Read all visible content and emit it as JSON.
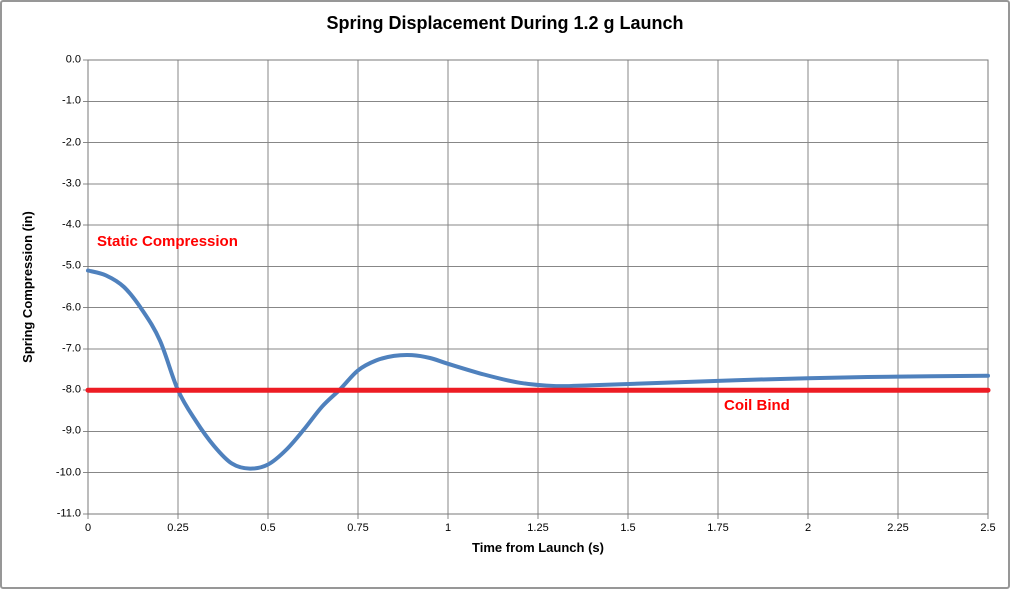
{
  "chart_data": {
    "type": "line",
    "title": "Spring Displacement During 1.2 g Launch",
    "xlabel": "Time from Launch (s)",
    "ylabel": "Spring Compression (in)",
    "xlim": [
      0,
      2.5
    ],
    "ylim": [
      -11.0,
      0.0
    ],
    "grid": true,
    "legend": "none",
    "x_tick_labels": [
      "0",
      "0.25",
      "0.5",
      "0.75",
      "1",
      "1.25",
      "1.5",
      "1.75",
      "2",
      "2.25",
      "2.5"
    ],
    "y_tick_labels": [
      "0.0",
      "-1.0",
      "-2.0",
      "-3.0",
      "-4.0",
      "-5.0",
      "-6.0",
      "-7.0",
      "-8.0",
      "-9.0",
      "-10.0",
      "-11.0"
    ],
    "series": [
      {
        "name": "Spring displacement",
        "color": "#4F81BD",
        "line_width": 4,
        "x": [
          0.0,
          0.05,
          0.1,
          0.15,
          0.2,
          0.25,
          0.3,
          0.35,
          0.4,
          0.45,
          0.5,
          0.55,
          0.6,
          0.65,
          0.7,
          0.75,
          0.8,
          0.85,
          0.9,
          0.95,
          1.0,
          1.1,
          1.2,
          1.3,
          1.4,
          1.6,
          1.8,
          2.0,
          2.25,
          2.5
        ],
        "y": [
          -5.1,
          -5.22,
          -5.5,
          -6.05,
          -6.8,
          -8.0,
          -8.75,
          -9.35,
          -9.78,
          -9.9,
          -9.8,
          -9.45,
          -8.95,
          -8.4,
          -7.98,
          -7.52,
          -7.28,
          -7.17,
          -7.15,
          -7.22,
          -7.36,
          -7.62,
          -7.82,
          -7.9,
          -7.88,
          -7.82,
          -7.76,
          -7.71,
          -7.67,
          -7.65
        ]
      },
      {
        "name": "Coil bind limit",
        "color": "#ED1C24",
        "line_width": 5,
        "x": [
          0,
          2.5
        ],
        "y": [
          -8.0,
          -8.0
        ]
      }
    ],
    "annotations": [
      {
        "text": "Static Compression",
        "color": "#FF0000"
      },
      {
        "text": "Coil Bind",
        "color": "#FF0000"
      }
    ],
    "colors": {
      "gridline": "#878787",
      "plot_border": "#7A7A7A",
      "background": "#FFFFFF",
      "text": "#000000"
    }
  }
}
